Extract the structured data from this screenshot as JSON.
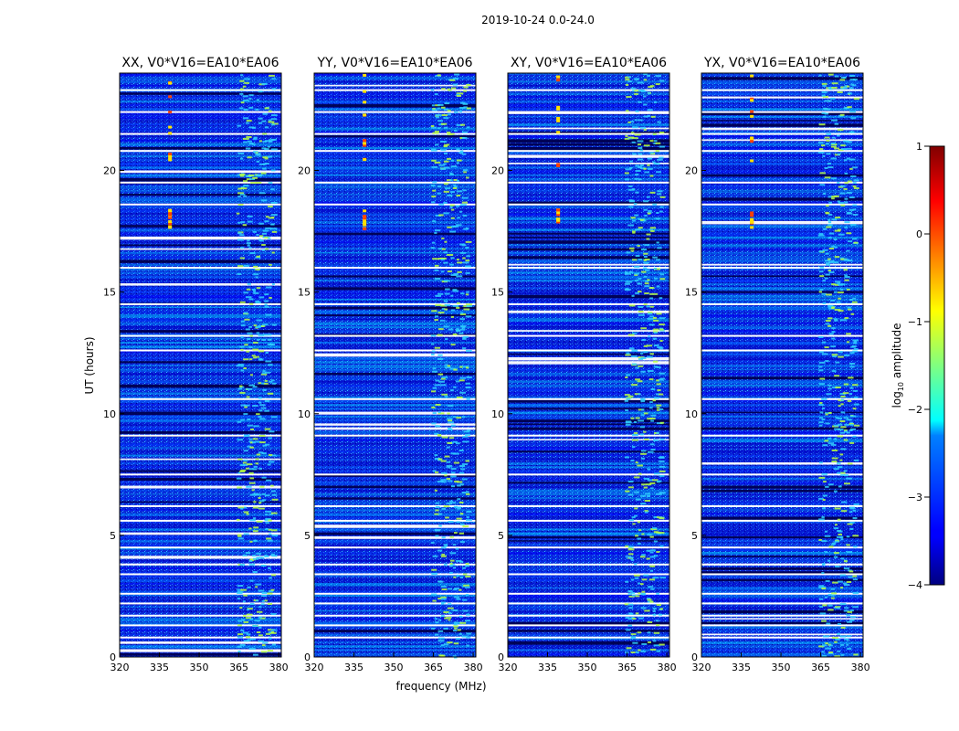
{
  "figure_title": "2019-10-24 0.0-24.0",
  "chart_data": {
    "type": "heatmap",
    "suptitle": "2019-10-24 0.0-24.0",
    "xlabel": "frequency (MHz)",
    "ylabel": "UT (hours)",
    "xlim": [
      320,
      381
    ],
    "ylim": [
      0,
      24
    ],
    "xticks": [
      "320",
      "335",
      "350",
      "365",
      "380"
    ],
    "yticks": [
      "0",
      "5",
      "10",
      "15",
      "20"
    ],
    "panels": [
      {
        "title": "XX, V0*V16=EA10*EA06",
        "polarization": "XX"
      },
      {
        "title": "YY, V0*V16=EA10*EA06",
        "polarization": "YY"
      },
      {
        "title": "XY, V0*V16=EA10*EA06",
        "polarization": "XY"
      },
      {
        "title": "YX, V0*V16=EA10*EA06",
        "polarization": "YX"
      }
    ],
    "colorbar": {
      "label_prefix": "log",
      "label_sub": "10",
      "label_suffix": " amplitude",
      "range": [
        -4,
        1
      ],
      "ticks": [
        "1",
        "0",
        "−1",
        "−2",
        "−3",
        "−4"
      ],
      "colormap": "jet"
    },
    "features": {
      "rfi_band_mhz": [
        364,
        378
      ],
      "rfi_line_mhz": 339,
      "rfi_line_hours": [
        [
          17.6,
          18.4
        ],
        [
          20,
          24
        ]
      ],
      "blank_rows_hours": [
        0.8,
        1.3,
        1.7,
        2.2,
        2.6,
        3.4,
        3.8,
        4.5,
        5.6,
        6.2,
        7.5,
        9.1,
        10.6,
        12.6,
        13.2,
        14.5,
        16.0,
        18.6,
        19.5,
        20.8,
        21.5,
        22.4,
        23.3
      ]
    }
  }
}
